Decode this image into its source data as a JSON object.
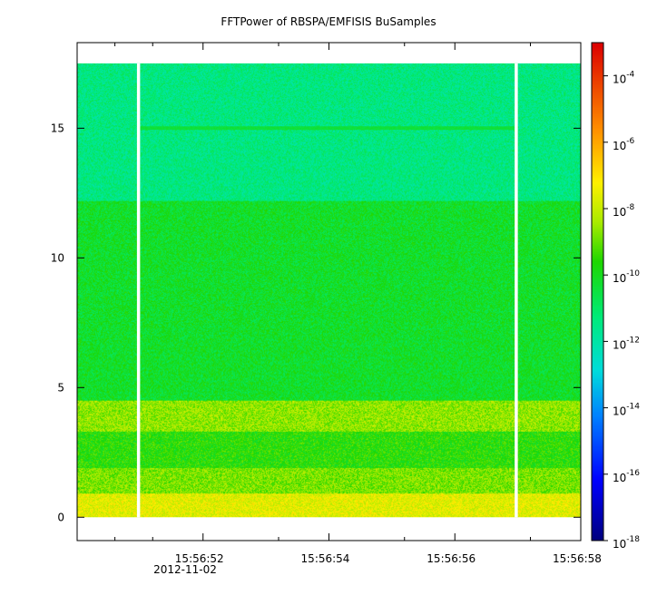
{
  "chart_data": {
    "type": "heatmap",
    "title": "FFTPower of RBSPA/EMFISIS  BuSamples",
    "xlabel": "",
    "ylabel": "",
    "x_tick_labels": [
      "15:56:52",
      "15:56:54",
      "15:56:56",
      "15:56:58"
    ],
    "x_date_label": "2012-11-02",
    "x_range_seconds": [
      50.0,
      58.0
    ],
    "x_major_ticks_seconds": [
      52,
      54,
      56,
      58
    ],
    "x_minor_ticks_seconds": [
      50.6,
      51.2,
      53.2,
      55.2,
      57.2
    ],
    "y_ticks": [
      0,
      5,
      10,
      15
    ],
    "ylim": [
      -0.9,
      18.3
    ],
    "y_data_range": [
      0,
      17.5
    ],
    "data_gaps_seconds": [
      [
        50.95,
        51.0
      ],
      [
        56.95,
        57.0
      ]
    ],
    "colorbar": {
      "scale": "log",
      "range": [
        1e-18,
        0.001
      ],
      "tick_exponents": [
        -18,
        -16,
        -14,
        -12,
        -10,
        -8,
        -6,
        -4
      ],
      "tick_base": "10"
    },
    "bands": [
      {
        "freq_range": [
          0,
          0.9
        ],
        "log_power": -7.6
      },
      {
        "freq_range": [
          0.9,
          1.9
        ],
        "log_power": -8.8
      },
      {
        "freq_range": [
          1.9,
          3.3
        ],
        "log_power": -9.6
      },
      {
        "freq_range": [
          3.3,
          4.5
        ],
        "log_power": -8.6
      },
      {
        "freq_range": [
          4.5,
          12.2
        ],
        "log_power": -10.2
      },
      {
        "freq_range": [
          12.2,
          17.5
        ],
        "log_power": -11.4
      }
    ],
    "spectral_line": {
      "freq": 15.0,
      "log_power": -10.4,
      "x_range_seconds": [
        51.0,
        56.95
      ]
    }
  }
}
